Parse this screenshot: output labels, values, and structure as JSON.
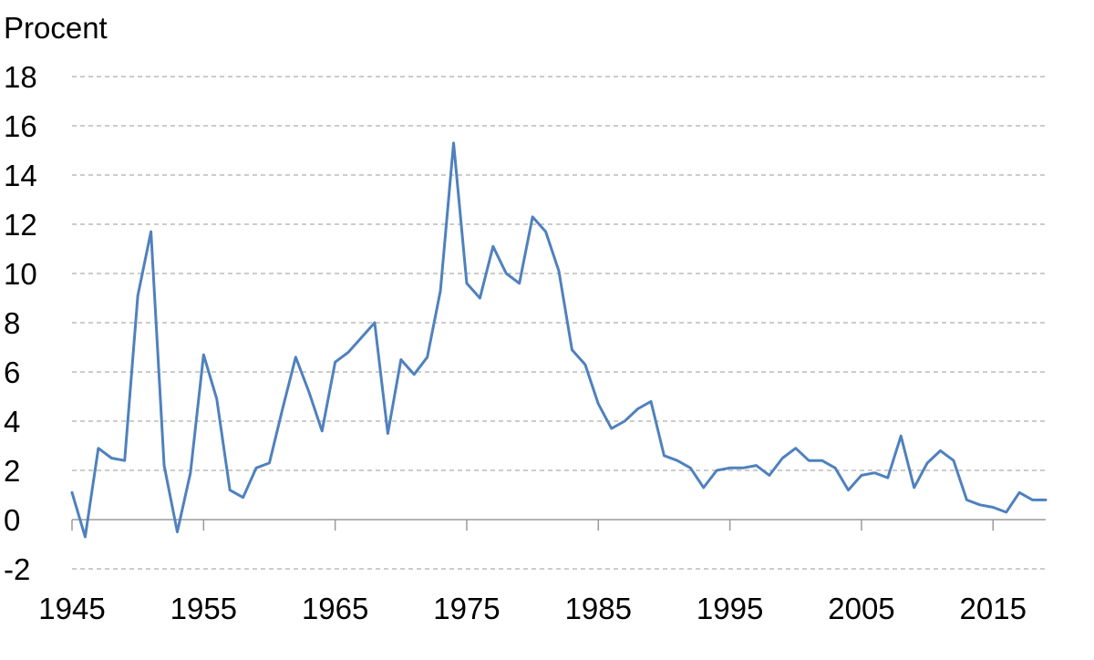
{
  "chart_data": {
    "type": "line",
    "ylabel": "Procent",
    "xlim": [
      1945,
      2019
    ],
    "ylim": [
      -2,
      18
    ],
    "y_ticks": [
      "-2",
      "0",
      "2",
      "4",
      "6",
      "8",
      "10",
      "12",
      "14",
      "16",
      "18"
    ],
    "x_ticks": [
      "1945",
      "1955",
      "1965",
      "1975",
      "1985",
      "1995",
      "2005",
      "2015"
    ],
    "grid": "horizontal dashed",
    "series": [
      {
        "color": "#4f81bd",
        "x": [
          1945,
          1946,
          1947,
          1948,
          1949,
          1950,
          1951,
          1952,
          1953,
          1954,
          1955,
          1956,
          1957,
          1958,
          1959,
          1960,
          1961,
          1962,
          1963,
          1964,
          1965,
          1966,
          1967,
          1968,
          1969,
          1970,
          1971,
          1972,
          1973,
          1974,
          1975,
          1976,
          1977,
          1978,
          1979,
          1980,
          1981,
          1982,
          1983,
          1984,
          1985,
          1986,
          1987,
          1988,
          1989,
          1990,
          1991,
          1992,
          1993,
          1994,
          1995,
          1996,
          1997,
          1998,
          1999,
          2000,
          2001,
          2002,
          2003,
          2004,
          2005,
          2006,
          2007,
          2008,
          2009,
          2010,
          2011,
          2012,
          2013,
          2014,
          2015,
          2016,
          2017,
          2018,
          2019
        ],
        "y": [
          1.1,
          -0.7,
          2.9,
          2.5,
          2.4,
          9.1,
          11.7,
          2.2,
          -0.5,
          1.9,
          6.7,
          4.9,
          1.2,
          0.9,
          2.1,
          2.3,
          4.5,
          6.6,
          5.2,
          3.6,
          6.4,
          6.8,
          7.4,
          8.0,
          3.5,
          6.5,
          5.9,
          6.6,
          9.3,
          15.3,
          9.6,
          9.0,
          11.1,
          10.0,
          9.6,
          12.3,
          11.7,
          10.1,
          6.9,
          6.3,
          4.7,
          3.7,
          4.0,
          4.5,
          4.8,
          2.6,
          2.4,
          2.1,
          1.3,
          2.0,
          2.1,
          2.1,
          2.2,
          1.8,
          2.5,
          2.9,
          2.4,
          2.4,
          2.1,
          1.2,
          1.8,
          1.9,
          1.7,
          3.4,
          1.3,
          2.3,
          2.8,
          2.4,
          0.8,
          0.6,
          0.5,
          0.3,
          1.1,
          0.8,
          0.8
        ]
      }
    ]
  }
}
